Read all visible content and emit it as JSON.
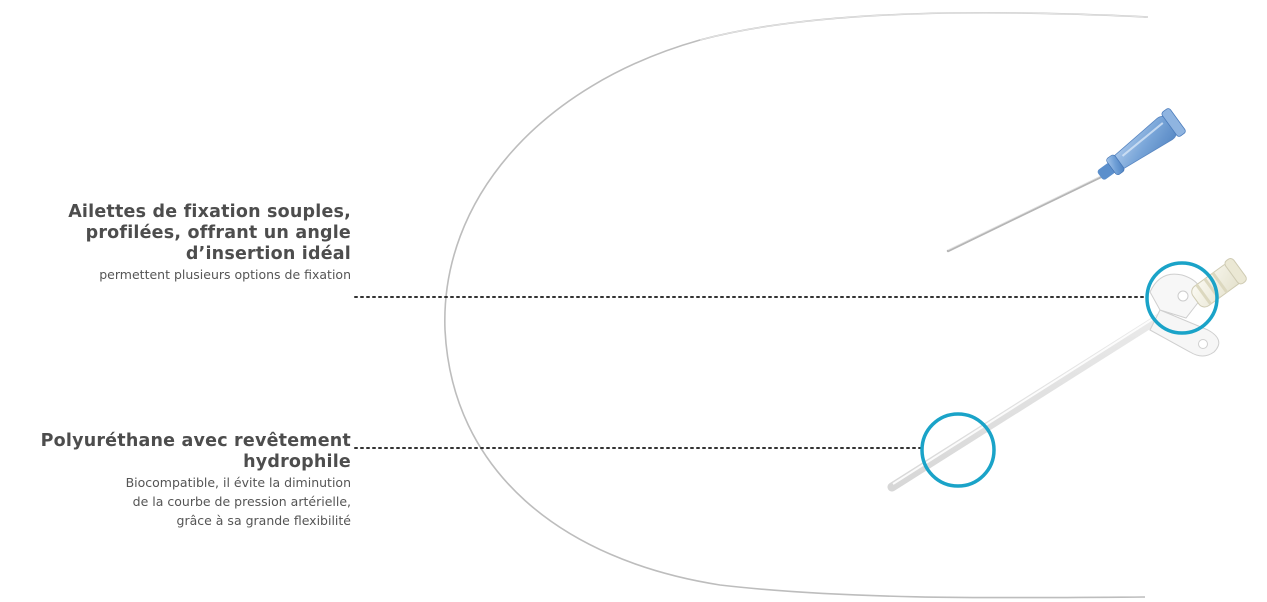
{
  "callouts": {
    "wings": {
      "title_lines": [
        "Ailettes de fixation souples,",
        "profilées, offrant un angle",
        "d’insertion idéal"
      ],
      "description_lines": [
        "permettent plusieurs options de fixation"
      ]
    },
    "material": {
      "title_lines": [
        "Polyuréthane avec revêtement",
        "hydrophile"
      ],
      "description_lines": [
        "Biocompatible, il évite la diminution",
        "de la courbe de pression artérielle,",
        "grâce à sa grande flexibilité"
      ]
    }
  },
  "colors": {
    "highlight_ring": "#1aa3c8",
    "leader_dots": "#333333",
    "needle_hub": "#7fa9d8",
    "catheter_hub": "#f1efe0",
    "guidewire": "#b9b9b9"
  },
  "icons": {
    "product": "arterial-catheter-kit"
  }
}
